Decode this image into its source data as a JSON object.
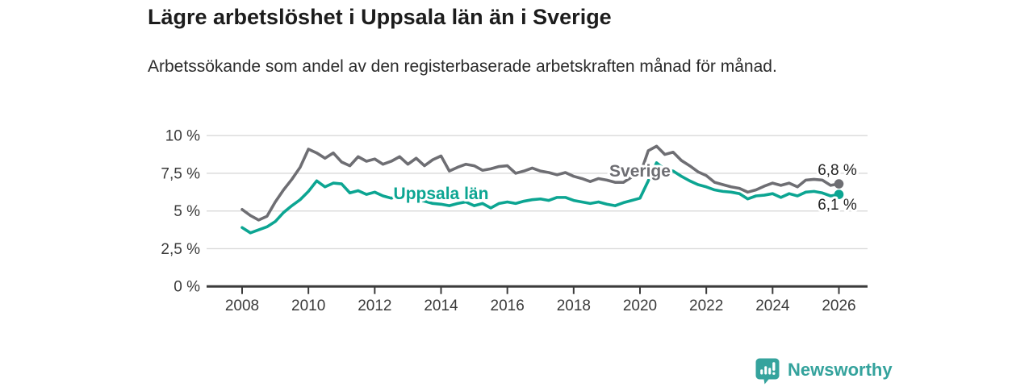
{
  "chart_data": {
    "type": "line",
    "title": "Lägre arbetslöshet i Uppsala län än i Sverige",
    "subtitle": "Arbetssökande som andel av den registerbaserade arbetskraften månad för månad.",
    "xlabel": "",
    "ylabel": "",
    "ylim": [
      0,
      10
    ],
    "xlim": [
      2006.9,
      2026.9
    ],
    "grid": true,
    "legend_position": "inline",
    "y_ticks": [
      0,
      2.5,
      5,
      7.5,
      10
    ],
    "y_tick_labels": [
      "0 %",
      "2,5 %",
      "5 %",
      "7,5 %",
      "10 %"
    ],
    "x_ticks": [
      2008,
      2010,
      2012,
      2014,
      2016,
      2018,
      2020,
      2022,
      2024,
      2026
    ],
    "x_tick_labels": [
      "2008",
      "2010",
      "2012",
      "2014",
      "2016",
      "2018",
      "2020",
      "2022",
      "2024",
      "2026"
    ],
    "x": [
      2008,
      2008.25,
      2008.5,
      2008.75,
      2009,
      2009.25,
      2009.5,
      2009.75,
      2010,
      2010.25,
      2010.5,
      2010.75,
      2011,
      2011.25,
      2011.5,
      2011.75,
      2012,
      2012.25,
      2012.5,
      2012.75,
      2013,
      2013.25,
      2013.5,
      2013.75,
      2014,
      2014.25,
      2014.5,
      2014.75,
      2015,
      2015.25,
      2015.5,
      2015.75,
      2016,
      2016.25,
      2016.5,
      2016.75,
      2017,
      2017.25,
      2017.5,
      2017.75,
      2018,
      2018.25,
      2018.5,
      2018.75,
      2019,
      2019.25,
      2019.5,
      2019.75,
      2020,
      2020.25,
      2020.5,
      2020.75,
      2021,
      2021.25,
      2021.5,
      2021.75,
      2022,
      2022.25,
      2022.5,
      2022.75,
      2023,
      2023.25,
      2023.5,
      2023.75,
      2024,
      2024.25,
      2024.5,
      2024.75,
      2025,
      2025.25,
      2025.5,
      2025.75,
      2026
    ],
    "series": [
      {
        "id": "sverige",
        "name": "Sverige",
        "color": "#6e6e73",
        "end_label": "6,8 %",
        "end_value": 6.8,
        "label_pos": {
          "x": 2020.0,
          "y": 7.66
        },
        "end_label_offset": [
          -2,
          -11
        ],
        "values": [
          5.1,
          4.7,
          4.4,
          4.65,
          5.6,
          6.4,
          7.1,
          7.9,
          9.1,
          8.85,
          8.5,
          8.85,
          8.25,
          8.0,
          8.6,
          8.3,
          8.45,
          8.1,
          8.3,
          8.6,
          8.1,
          8.5,
          8.0,
          8.4,
          8.65,
          7.65,
          7.9,
          8.1,
          8.0,
          7.7,
          7.8,
          7.95,
          8.0,
          7.5,
          7.65,
          7.85,
          7.65,
          7.55,
          7.4,
          7.55,
          7.3,
          7.15,
          6.95,
          7.15,
          7.05,
          6.9,
          6.9,
          7.25,
          7.4,
          9.0,
          9.3,
          8.75,
          8.9,
          8.35,
          8.0,
          7.6,
          7.35,
          6.9,
          6.75,
          6.6,
          6.5,
          6.25,
          6.4,
          6.65,
          6.85,
          6.7,
          6.85,
          6.6,
          7.05,
          7.1,
          7.05,
          6.7,
          6.8
        ]
      },
      {
        "id": "uppsala",
        "name": "Uppsala län",
        "color": "#0ca592",
        "end_label": "6,1 %",
        "end_value": 6.1,
        "label_pos": {
          "x": 2014.0,
          "y": 6.16
        },
        "end_label_offset": [
          -2,
          19
        ],
        "values": [
          3.9,
          3.55,
          3.75,
          3.95,
          4.3,
          4.9,
          5.35,
          5.75,
          6.3,
          7.0,
          6.6,
          6.85,
          6.8,
          6.2,
          6.35,
          6.1,
          6.25,
          6.0,
          5.85,
          6.0,
          5.9,
          5.8,
          5.65,
          5.5,
          5.45,
          5.35,
          5.5,
          5.6,
          5.35,
          5.5,
          5.2,
          5.5,
          5.6,
          5.5,
          5.65,
          5.75,
          5.8,
          5.7,
          5.9,
          5.9,
          5.7,
          5.6,
          5.5,
          5.6,
          5.45,
          5.35,
          5.55,
          5.7,
          5.85,
          7.0,
          8.2,
          7.75,
          7.65,
          7.3,
          7.0,
          6.75,
          6.6,
          6.4,
          6.3,
          6.25,
          6.15,
          5.8,
          6.0,
          6.05,
          6.15,
          5.9,
          6.15,
          6.0,
          6.25,
          6.3,
          6.2,
          6.0,
          6.1
        ]
      }
    ]
  },
  "footer": {
    "brand": "Newsworthy",
    "brand_color": "#35a39d"
  }
}
